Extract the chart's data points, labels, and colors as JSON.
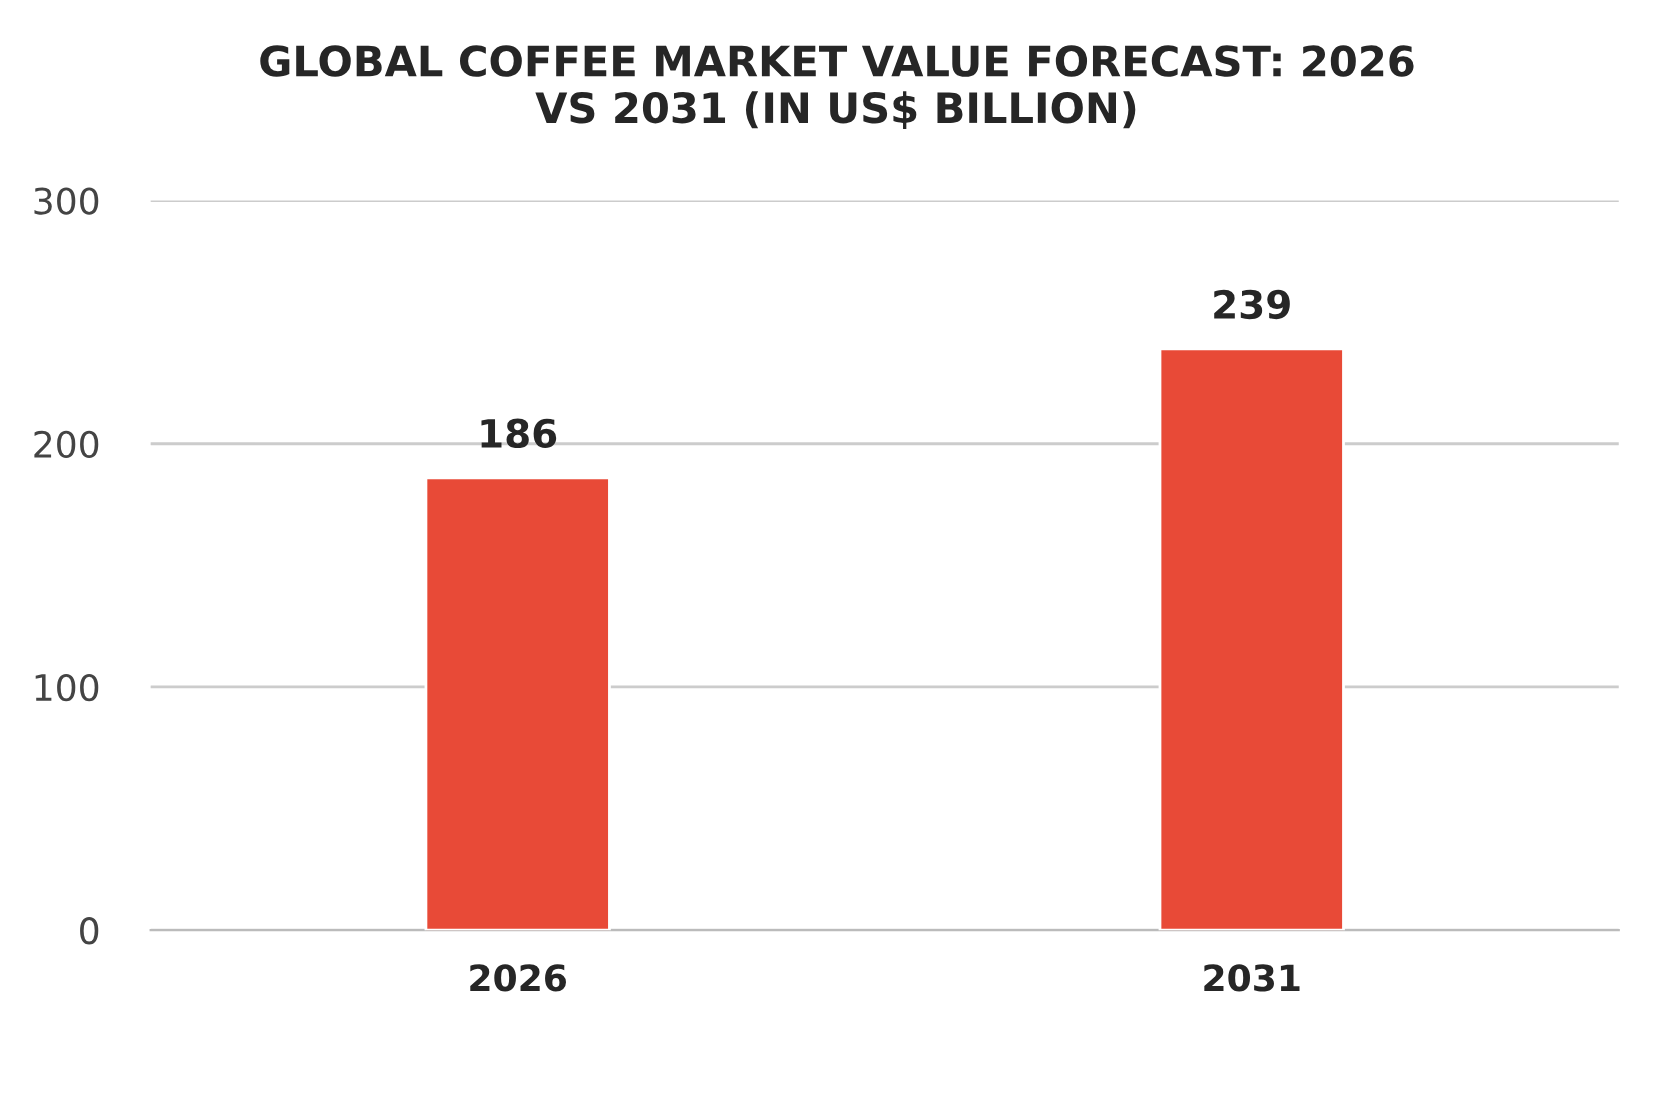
{
  "chart_data": {
    "type": "bar",
    "title": "GLOBAL COFFEE MARKET VALUE FORECAST: 2026\nVS 2031 (IN US$ BILLION)",
    "categories": [
      "2026",
      "2031"
    ],
    "values": [
      186,
      239
    ],
    "color": "#e84a37",
    "ylim": [
      0,
      300
    ],
    "yticks": [
      0,
      100,
      200,
      300
    ],
    "grid": "y",
    "data_labels": true
  }
}
